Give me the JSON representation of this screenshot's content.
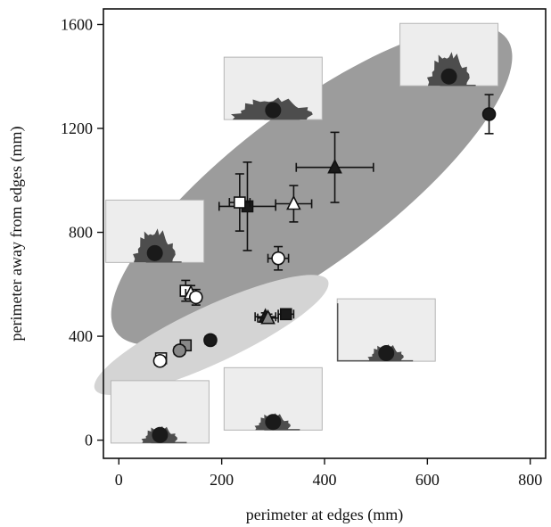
{
  "chart_data": {
    "type": "scatter",
    "title": "",
    "xlabel": "perimeter at edges (mm)",
    "ylabel": "perimeter away from edges (mm)",
    "xlim": [
      -30,
      830
    ],
    "ylim": [
      -70,
      1660
    ],
    "xticks": [
      "0",
      "200",
      "400",
      "600",
      "800"
    ],
    "yticks": [
      "0",
      "400",
      "800",
      "1200",
      "1600"
    ],
    "grid": false,
    "legend": "none",
    "colors": {
      "marker_dark": "#1a1a1a",
      "marker_grey": "#888888",
      "marker_open": "#ffffff",
      "ellipse_upper": "#9c9c9c",
      "ellipse_lower": "#d4d4d4",
      "inset_background": "#ededed",
      "colony": "#4d4d4d"
    },
    "regions": [
      {
        "cx": 375,
        "cy": 980,
        "rx": 475,
        "ry": 150,
        "angle_deg": 37,
        "shade": "ellipse_upper"
      },
      {
        "cx": 180,
        "cy": 405,
        "rx": 250,
        "ry": 55,
        "angle_deg": 25,
        "shade": "ellipse_lower"
      }
    ],
    "points": [
      {
        "x": 720,
        "y": 1255,
        "xerr": 0,
        "yerr": 75,
        "marker": "circle",
        "fill": "dark"
      },
      {
        "x": 420,
        "y": 1050,
        "xerr": 75,
        "yerr": 135,
        "marker": "triangle",
        "fill": "dark"
      },
      {
        "x": 340,
        "y": 910,
        "xerr": 35,
        "yerr": 70,
        "marker": "triangle",
        "fill": "open"
      },
      {
        "x": 250,
        "y": 900,
        "xerr": 55,
        "yerr": 170,
        "marker": "square",
        "fill": "dark"
      },
      {
        "x": 235,
        "y": 915,
        "xerr": 20,
        "yerr": 110,
        "marker": "square",
        "fill": "open"
      },
      {
        "x": 310,
        "y": 700,
        "xerr": 20,
        "yerr": 45,
        "marker": "circle",
        "fill": "open"
      },
      {
        "x": 130,
        "y": 575,
        "xerr": 10,
        "yerr": 40,
        "marker": "square",
        "fill": "open"
      },
      {
        "x": 140,
        "y": 565,
        "xerr": 10,
        "yerr": 30,
        "marker": "triangle",
        "fill": "open"
      },
      {
        "x": 150,
        "y": 550,
        "xerr": 10,
        "yerr": 30,
        "marker": "circle",
        "fill": "open"
      },
      {
        "x": 325,
        "y": 485,
        "xerr": 15,
        "yerr": 15,
        "marker": "square",
        "fill": "dark"
      },
      {
        "x": 285,
        "y": 475,
        "xerr": 20,
        "yerr": 15,
        "marker": "triangle",
        "fill": "dark"
      },
      {
        "x": 290,
        "y": 470,
        "xerr": 20,
        "yerr": 15,
        "marker": "triangle",
        "fill": "grey"
      },
      {
        "x": 178,
        "y": 385,
        "xerr": 10,
        "yerr": 15,
        "marker": "circle",
        "fill": "dark"
      },
      {
        "x": 130,
        "y": 365,
        "xerr": 10,
        "yerr": 15,
        "marker": "square",
        "fill": "grey"
      },
      {
        "x": 118,
        "y": 345,
        "xerr": 10,
        "yerr": 15,
        "marker": "circle",
        "fill": "grey"
      },
      {
        "x": 82,
        "y": 315,
        "xerr": 10,
        "yerr": 15,
        "marker": "square",
        "fill": "open"
      },
      {
        "x": 80,
        "y": 305,
        "xerr": 10,
        "yerr": 15,
        "marker": "circle",
        "fill": "open"
      }
    ],
    "insets": [
      {
        "anchor_x": 642,
        "anchor_y": 1400,
        "variant": "top-right-large"
      },
      {
        "anchor_x": 300,
        "anchor_y": 1270,
        "variant": "spread-wide"
      },
      {
        "anchor_x": 70,
        "anchor_y": 720,
        "variant": "tall-left"
      },
      {
        "anchor_x": 520,
        "anchor_y": 335,
        "variant": "corner-small"
      },
      {
        "anchor_x": 80,
        "anchor_y": 20,
        "variant": "bottom-small"
      },
      {
        "anchor_x": 300,
        "anchor_y": 70,
        "variant": "bottom-small"
      }
    ]
  }
}
